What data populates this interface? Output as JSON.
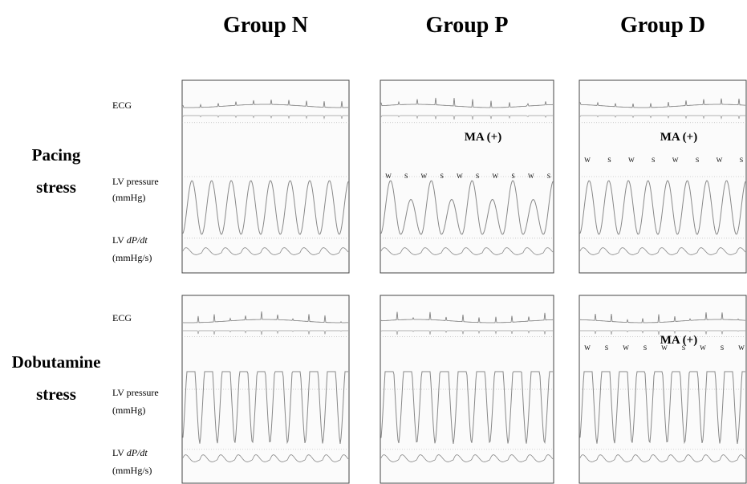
{
  "columns": [
    "Group N",
    "Group P",
    "Group D"
  ],
  "rows": [
    {
      "label": [
        "Pacing",
        "stress"
      ],
      "ecg": "ECG",
      "pressure": [
        "LV pressure",
        "(mmHg)"
      ],
      "dpdt": {
        "prefix": "LV",
        "italic": "dP/dt",
        "unit": "(mmHg/s)"
      },
      "panels": [
        {},
        {
          "annotation": "MA (+)",
          "ws_labels": [
            "W",
            "S",
            "W",
            "S",
            "W",
            "S",
            "W",
            "S",
            "W",
            "S"
          ]
        },
        {
          "annotation": "MA (+)",
          "ws_labels": [
            "W",
            "S",
            "W",
            "S",
            "W",
            "S",
            "W",
            "S"
          ]
        }
      ]
    },
    {
      "label": [
        "Dobutamine",
        "stress"
      ],
      "ecg": "ECG",
      "pressure": [
        "LV pressure",
        "(mmHg)"
      ],
      "dpdt": {
        "prefix": "LV",
        "italic": "dP/dt",
        "unit": "(mmHg/s)"
      },
      "panels": [
        {},
        {},
        {
          "annotation": "MA (+)",
          "ws_labels": [
            "W",
            "S",
            "W",
            "S",
            "W",
            "S",
            "W",
            "S",
            "W"
          ]
        }
      ]
    }
  ]
}
